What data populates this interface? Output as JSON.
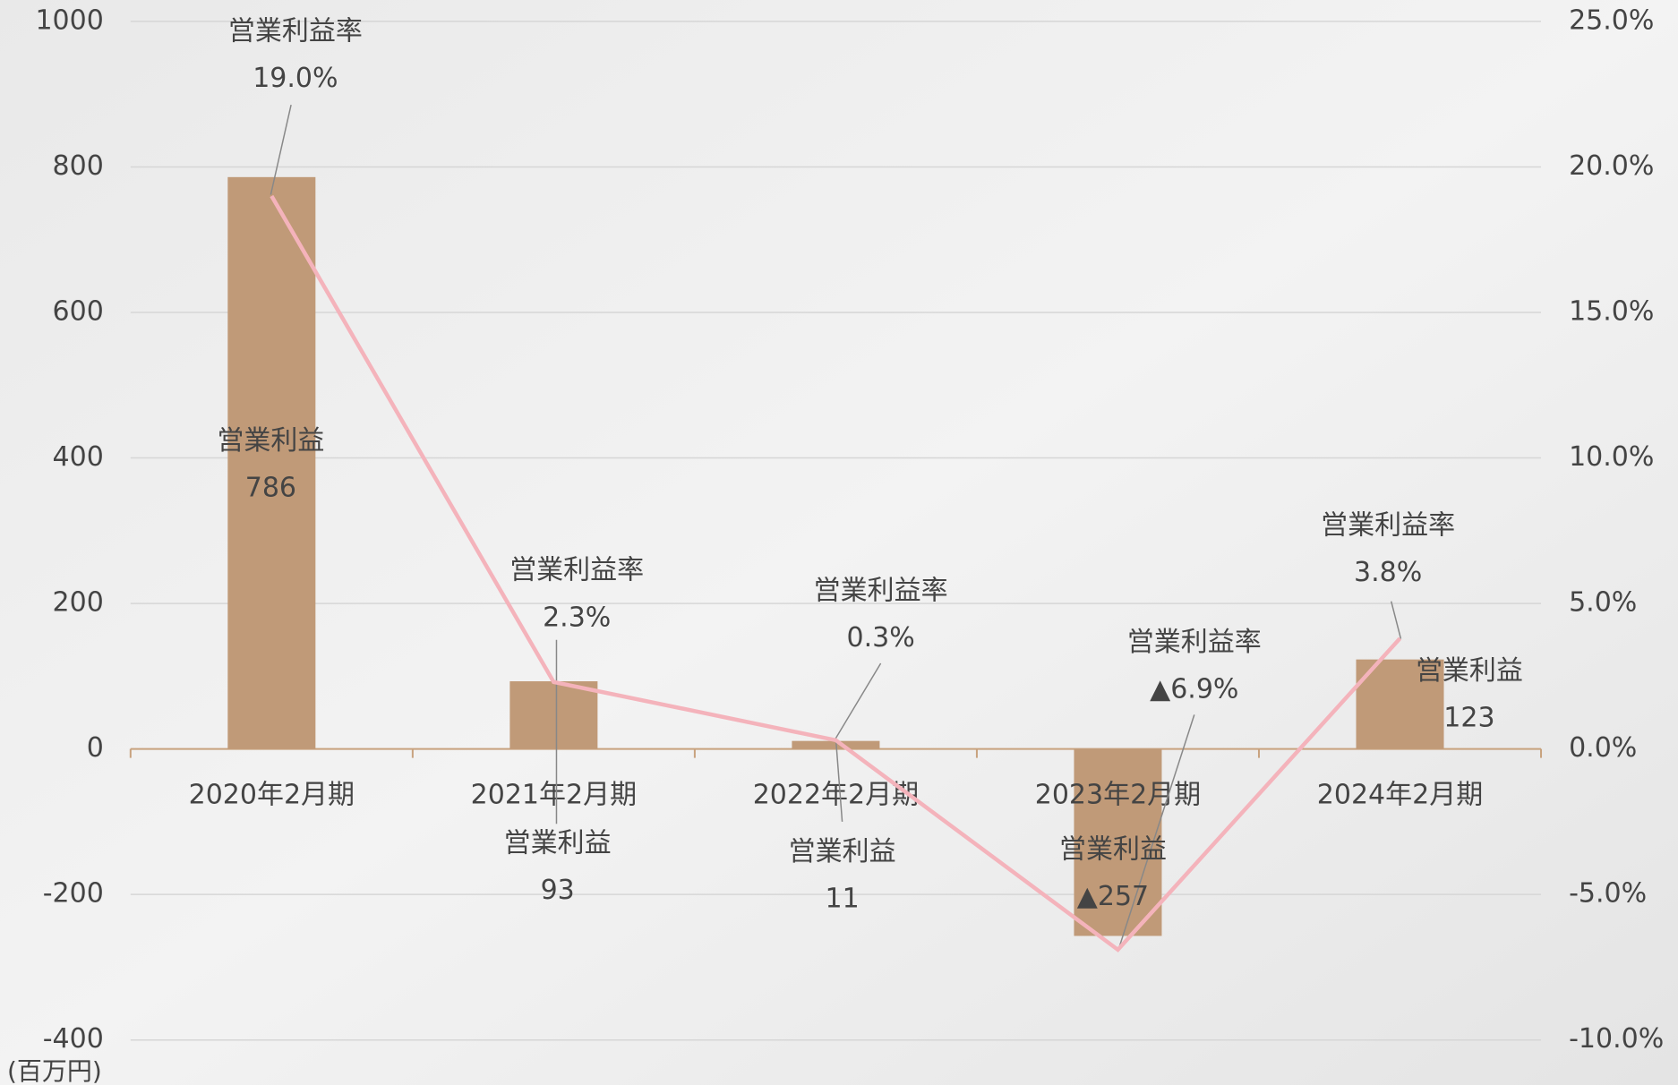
{
  "chart_data": {
    "type": "bar_line",
    "unit_label": "(百万円)",
    "categories": [
      "2020年2月期",
      "2021年2月期",
      "2022年2月期",
      "2023年2月期",
      "2024年2月期"
    ],
    "series": [
      {
        "name": "営業利益",
        "color": "#c09a78",
        "values": [
          786,
          93,
          11,
          -257,
          123
        ],
        "value_labels": [
          "786",
          "93",
          "11",
          "▲257",
          "123"
        ]
      },
      {
        "name": "営業利益率",
        "color": "#f4b3bb",
        "axis": "y2",
        "values": [
          19.0,
          2.3,
          0.3,
          -6.9,
          3.8
        ],
        "value_labels": [
          "19.0%",
          "2.3%",
          "0.3%",
          "▲6.9%",
          "3.8%"
        ]
      }
    ],
    "ylim": [
      -400,
      1000
    ],
    "yticks": [
      -400,
      -200,
      0,
      200,
      400,
      600,
      800,
      1000
    ],
    "y2lim": [
      -10,
      25
    ],
    "y2ticks": [
      {
        "value": -10,
        "label": "-10.0%"
      },
      {
        "value": -5,
        "label": "-5.0%"
      },
      {
        "value": 0,
        "label": "0.0%"
      },
      {
        "value": 5,
        "label": "5.0%"
      },
      {
        "value": 10,
        "label": "10.0%"
      },
      {
        "value": 15,
        "label": "15.0%"
      },
      {
        "value": 20,
        "label": "20.0%"
      },
      {
        "value": 25,
        "label": "25.0%"
      }
    ],
    "grid": true
  }
}
